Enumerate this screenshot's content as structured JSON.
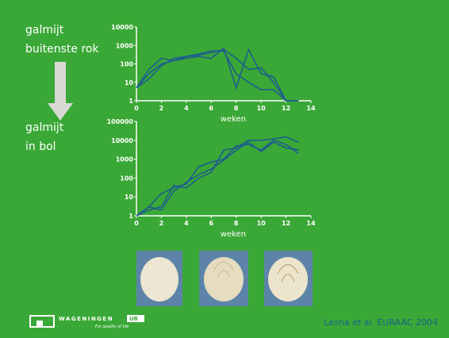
{
  "slide": {
    "label_top": [
      "galmijt",
      "buitenste rok"
    ],
    "label_bottom": [
      "galmijt",
      "in bol"
    ],
    "logo": "WAGENINGEN",
    "logo_ur": "UR",
    "logo_tagline": "For quality of life",
    "citation": "Lesna et al. EURAAC 2004"
  },
  "chart_data": [
    {
      "type": "line",
      "x_label": "weken",
      "log_y": true,
      "x": [
        0,
        1,
        2,
        3,
        4,
        5,
        6,
        7,
        8,
        9,
        10,
        11,
        12,
        13
      ],
      "xlim": [
        0,
        14
      ],
      "xticks": [
        0,
        2,
        4,
        6,
        8,
        10,
        12,
        14
      ],
      "ylim": [
        1,
        10000
      ],
      "yticks": [
        1,
        10,
        100,
        1000,
        10000
      ],
      "series": [
        {
          "color": "#1d5e8c",
          "values": [
            5,
            30,
            100,
            150,
            250,
            300,
            400,
            600,
            200,
            50,
            60,
            10,
            1,
            1
          ]
        },
        {
          "color": "#1d5e8c",
          "values": [
            5,
            50,
            200,
            150,
            200,
            250,
            200,
            700,
            5,
            600,
            30,
            20,
            1,
            1
          ]
        },
        {
          "color": "#1d5e8c",
          "values": [
            5,
            15,
            80,
            200,
            250,
            350,
            500,
            500,
            30,
            10,
            4,
            4,
            1,
            1
          ]
        }
      ]
    },
    {
      "type": "line",
      "x_label": "weken",
      "log_y": true,
      "x": [
        0,
        1,
        2,
        3,
        4,
        5,
        6,
        7,
        8,
        9,
        10,
        11,
        12,
        13
      ],
      "xlim": [
        0,
        14
      ],
      "xticks": [
        0,
        2,
        4,
        6,
        8,
        10,
        12,
        14
      ],
      "ylim": [
        1,
        100000
      ],
      "yticks": [
        1,
        10,
        100,
        1000,
        10000,
        100000
      ],
      "series": [
        {
          "color": "#1d5e8c",
          "values": [
            1,
            3,
            15,
            30,
            50,
            400,
            700,
            1000,
            5000,
            6000,
            3000,
            10000,
            6000,
            2000
          ]
        },
        {
          "color": "#1d5e8c",
          "values": [
            1,
            2,
            3,
            40,
            30,
            100,
            200,
            3000,
            4000,
            10000,
            10000,
            12000,
            15000,
            8000
          ]
        },
        {
          "color": "#1d5e8c",
          "values": [
            1,
            3,
            2,
            20,
            60,
            150,
            300,
            900,
            3000,
            8000,
            2500,
            8000,
            4000,
            3000
          ]
        }
      ]
    }
  ]
}
